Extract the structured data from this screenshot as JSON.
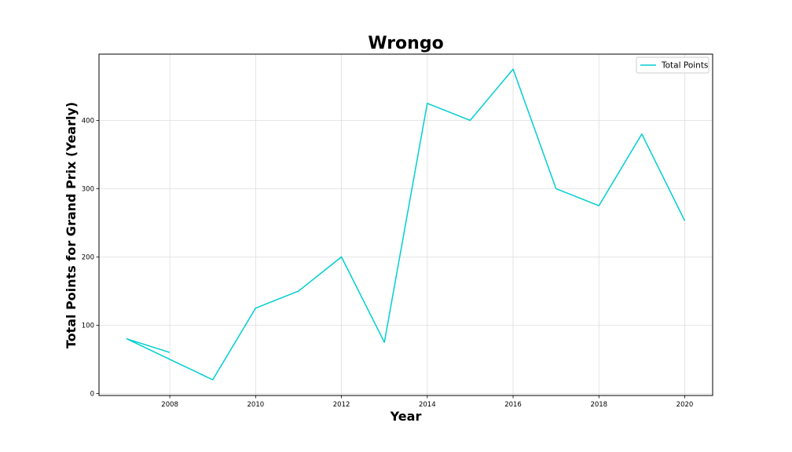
{
  "chart_data": {
    "type": "line",
    "title": "Wrongo",
    "xlabel": "Year",
    "ylabel": "Total Points for Grand Prix (Yearly)",
    "xlim": [
      2006.35,
      2020.65
    ],
    "ylim": [
      -3,
      497
    ],
    "xticks": [
      2008,
      2010,
      2012,
      2014,
      2016,
      2018,
      2020
    ],
    "yticks": [
      0,
      100,
      200,
      300,
      400
    ],
    "grid": true,
    "legend_position": "top-right",
    "color": "#00CED1",
    "series": [
      {
        "name": "Total Points",
        "points": [
          [
            2008,
            60
          ],
          [
            2007,
            80
          ],
          [
            2008,
            50
          ],
          [
            2009,
            20
          ],
          [
            2010,
            125
          ],
          [
            2011,
            150
          ],
          [
            2012,
            200
          ],
          [
            2013,
            75
          ],
          [
            2014,
            425
          ],
          [
            2015,
            400
          ],
          [
            2016,
            475
          ],
          [
            2017,
            300
          ],
          [
            2018,
            275
          ],
          [
            2019,
            380
          ],
          [
            2020,
            253
          ]
        ]
      }
    ]
  }
}
